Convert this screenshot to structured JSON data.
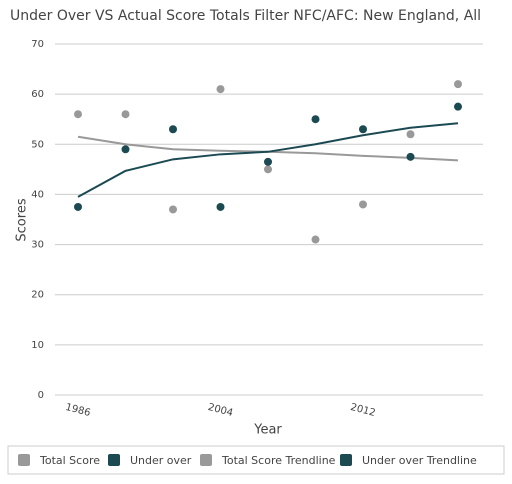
{
  "chart_data": {
    "type": "line",
    "title": "Under Over VS Actual Score Totals Filter NFC/AFC: New England, All",
    "x_label": "Year",
    "y_label": "Scores",
    "categories": [
      "1986",
      null,
      null,
      "2004",
      null,
      null,
      "2012",
      null,
      null
    ],
    "series": [
      {
        "name": "Total Score",
        "color": "#999999",
        "style": "marker",
        "values": [
          56,
          56,
          37,
          61,
          45,
          31,
          38,
          52,
          62
        ]
      },
      {
        "name": "Under over",
        "color": "#1c4a52",
        "style": "marker",
        "values": [
          37.5,
          49,
          53,
          37.5,
          46.5,
          55,
          53,
          47.5,
          57.5
        ]
      },
      {
        "name": "Total Score Trendline",
        "color": "#999999",
        "style": "line",
        "values": [
          51.5,
          50,
          49,
          48.7,
          48.5,
          48.2,
          47.7,
          47.3,
          46.8
        ]
      },
      {
        "name": "Under over Trendline",
        "color": "#1c4a52",
        "style": "line",
        "values": [
          39.5,
          44.7,
          47,
          48,
          48.5,
          50,
          51.8,
          53.3,
          54.2
        ]
      }
    ],
    "ylim": [
      0,
      70
    ],
    "yticks": [
      0,
      10,
      20,
      30,
      40,
      50,
      60,
      70
    ],
    "grid": true
  }
}
